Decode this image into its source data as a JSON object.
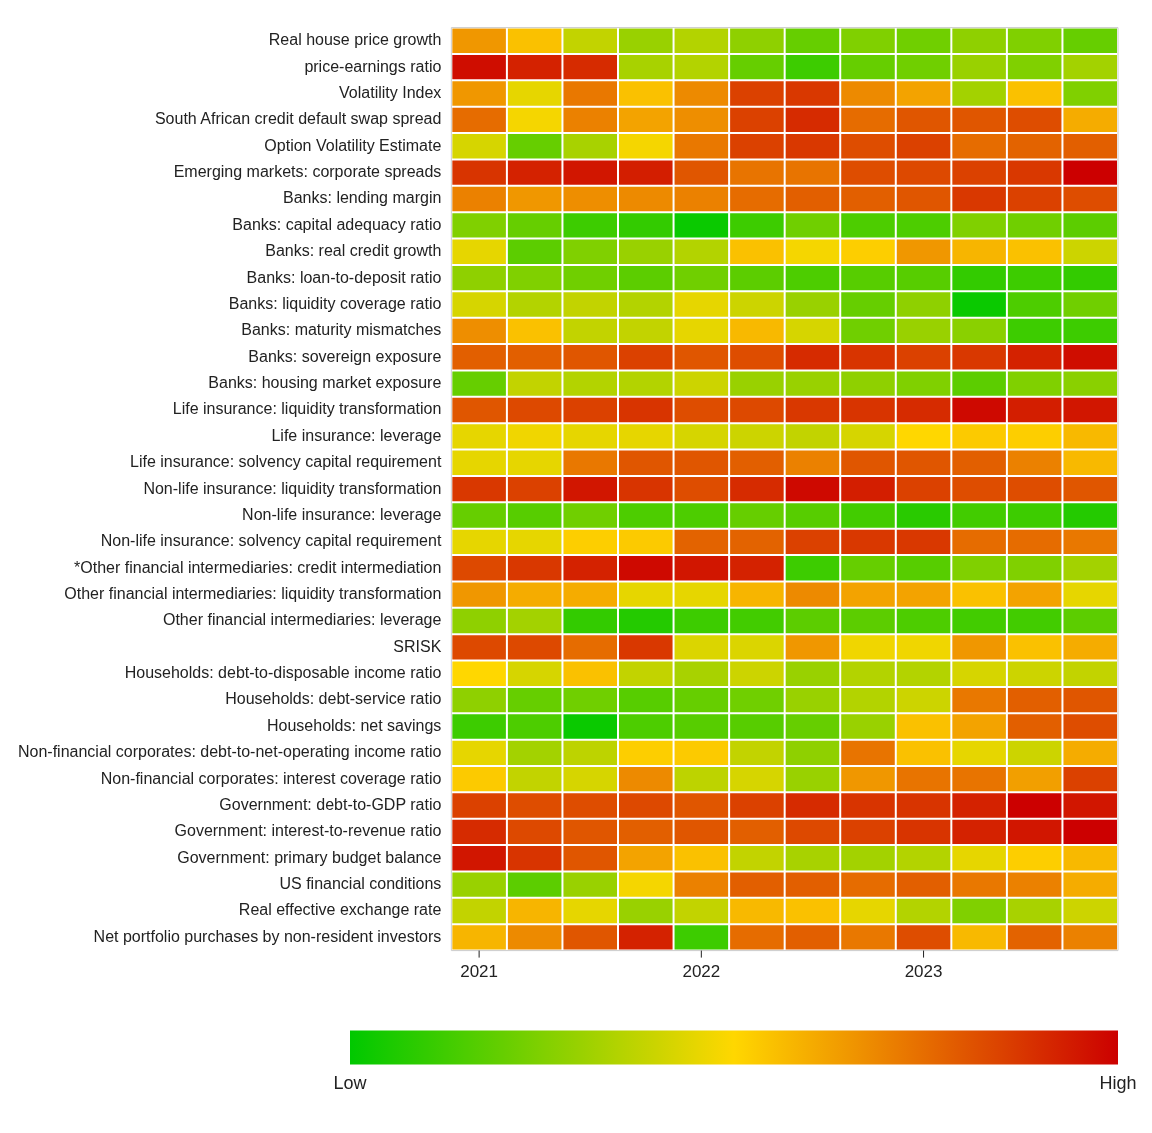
{
  "chart_data": {
    "type": "heatmap",
    "categories": [
      "2021",
      null,
      null,
      null,
      "2022",
      null,
      null,
      null,
      "2023",
      null,
      null,
      null
    ],
    "y_categories": [
      "Real house price growth",
      "price-earnings ratio",
      "Volatility Index",
      "South African credit default swap spread",
      "Option Volatility Estimate",
      "Emerging markets: corporate spreads",
      "Banks: lending margin",
      "Banks: capital adequacy ratio",
      "Banks: real credit growth",
      "Banks: loan-to-deposit ratio",
      "Banks: liquidity coverage ratio",
      "Banks: maturity mismatches",
      "Banks: sovereign exposure",
      "Banks: housing market exposure",
      "Life insurance: liquidity transformation",
      "Life insurance: leverage",
      "Life insurance: solvency capital requirement",
      "Non-life insurance: liquidity transformation",
      "Non-life insurance: leverage",
      "Non-life insurance: solvency capital requirement",
      "*Other financial intermediaries: credit intermediation",
      "Other financial intermediaries: liquidity transformation",
      "Other financial intermediaries: leverage",
      "SRISK",
      "Households: debt-to-disposable income ratio",
      "Households: debt-service ratio",
      "Households: net savings",
      "Non-financial corporates: debt-to-net-operating income ratio",
      "Non-financial corporates: interest coverage ratio",
      "Government: debt-to-GDP ratio",
      "Government: interest-to-revenue ratio",
      "Government: primary budget balance",
      "US financial conditions",
      "Real effective exchange rate",
      "Net portfolio purchases by non-resident investors"
    ],
    "cells": [
      [
        0.65,
        0.55,
        0.38,
        0.3,
        0.35,
        0.28,
        0.2,
        0.25,
        0.22,
        0.28,
        0.25,
        0.2
      ],
      [
        0.97,
        0.92,
        0.9,
        0.33,
        0.35,
        0.2,
        0.12,
        0.2,
        0.22,
        0.3,
        0.25,
        0.32
      ],
      [
        0.65,
        0.45,
        0.72,
        0.55,
        0.68,
        0.85,
        0.87,
        0.68,
        0.62,
        0.32,
        0.55,
        0.25
      ],
      [
        0.75,
        0.48,
        0.7,
        0.62,
        0.67,
        0.85,
        0.9,
        0.75,
        0.8,
        0.8,
        0.82,
        0.6
      ],
      [
        0.42,
        0.2,
        0.33,
        0.48,
        0.72,
        0.85,
        0.87,
        0.82,
        0.85,
        0.75,
        0.77,
        0.78
      ],
      [
        0.88,
        0.92,
        0.95,
        0.93,
        0.8,
        0.73,
        0.73,
        0.82,
        0.83,
        0.85,
        0.87,
        1.0
      ],
      [
        0.7,
        0.65,
        0.67,
        0.68,
        0.7,
        0.75,
        0.78,
        0.78,
        0.8,
        0.87,
        0.85,
        0.82
      ],
      [
        0.25,
        0.2,
        0.12,
        0.1,
        0.02,
        0.12,
        0.22,
        0.15,
        0.15,
        0.25,
        0.22,
        0.18
      ],
      [
        0.45,
        0.18,
        0.25,
        0.3,
        0.35,
        0.55,
        0.48,
        0.52,
        0.65,
        0.58,
        0.55,
        0.4
      ],
      [
        0.28,
        0.25,
        0.22,
        0.18,
        0.22,
        0.18,
        0.15,
        0.17,
        0.17,
        0.1,
        0.12,
        0.1
      ],
      [
        0.42,
        0.35,
        0.38,
        0.35,
        0.45,
        0.4,
        0.3,
        0.2,
        0.28,
        0.02,
        0.15,
        0.22
      ],
      [
        0.67,
        0.55,
        0.38,
        0.38,
        0.45,
        0.57,
        0.42,
        0.22,
        0.3,
        0.27,
        0.12,
        0.12
      ],
      [
        0.78,
        0.78,
        0.8,
        0.85,
        0.8,
        0.82,
        0.9,
        0.88,
        0.85,
        0.87,
        0.92,
        0.97
      ],
      [
        0.2,
        0.38,
        0.35,
        0.35,
        0.4,
        0.3,
        0.3,
        0.28,
        0.25,
        0.18,
        0.25,
        0.27
      ],
      [
        0.8,
        0.83,
        0.85,
        0.88,
        0.82,
        0.83,
        0.87,
        0.88,
        0.9,
        0.98,
        0.93,
        0.95
      ],
      [
        0.45,
        0.47,
        0.45,
        0.45,
        0.42,
        0.4,
        0.38,
        0.42,
        0.5,
        0.53,
        0.52,
        0.57
      ],
      [
        0.45,
        0.45,
        0.72,
        0.8,
        0.8,
        0.78,
        0.7,
        0.8,
        0.8,
        0.78,
        0.7,
        0.57
      ],
      [
        0.87,
        0.85,
        0.95,
        0.88,
        0.82,
        0.9,
        0.98,
        0.93,
        0.85,
        0.82,
        0.82,
        0.8
      ],
      [
        0.2,
        0.17,
        0.22,
        0.15,
        0.15,
        0.2,
        0.17,
        0.13,
        0.08,
        0.13,
        0.12,
        0.07
      ],
      [
        0.45,
        0.45,
        0.52,
        0.53,
        0.77,
        0.77,
        0.85,
        0.87,
        0.87,
        0.75,
        0.75,
        0.72
      ],
      [
        0.83,
        0.87,
        0.92,
        0.98,
        0.95,
        0.92,
        0.12,
        0.2,
        0.17,
        0.25,
        0.25,
        0.32
      ],
      [
        0.65,
        0.6,
        0.6,
        0.45,
        0.45,
        0.58,
        0.68,
        0.62,
        0.62,
        0.55,
        0.62,
        0.45
      ],
      [
        0.28,
        0.32,
        0.1,
        0.07,
        0.12,
        0.13,
        0.18,
        0.18,
        0.15,
        0.13,
        0.13,
        0.18
      ],
      [
        0.83,
        0.83,
        0.75,
        0.87,
        0.43,
        0.43,
        0.65,
        0.47,
        0.47,
        0.65,
        0.55,
        0.6
      ],
      [
        0.5,
        0.42,
        0.55,
        0.38,
        0.33,
        0.4,
        0.3,
        0.35,
        0.35,
        0.42,
        0.4,
        0.38
      ],
      [
        0.28,
        0.2,
        0.22,
        0.17,
        0.2,
        0.22,
        0.3,
        0.35,
        0.4,
        0.72,
        0.78,
        0.8
      ],
      [
        0.12,
        0.15,
        0.02,
        0.15,
        0.17,
        0.17,
        0.2,
        0.3,
        0.55,
        0.62,
        0.78,
        0.82
      ],
      [
        0.45,
        0.32,
        0.37,
        0.52,
        0.53,
        0.38,
        0.28,
        0.73,
        0.55,
        0.45,
        0.4,
        0.6
      ],
      [
        0.53,
        0.38,
        0.42,
        0.68,
        0.37,
        0.42,
        0.3,
        0.65,
        0.73,
        0.73,
        0.63,
        0.85
      ],
      [
        0.85,
        0.82,
        0.82,
        0.83,
        0.8,
        0.85,
        0.9,
        0.88,
        0.88,
        0.92,
        1.0,
        0.95
      ],
      [
        0.9,
        0.83,
        0.8,
        0.78,
        0.8,
        0.78,
        0.83,
        0.85,
        0.88,
        0.92,
        0.95,
        1.0
      ],
      [
        0.95,
        0.88,
        0.8,
        0.62,
        0.55,
        0.38,
        0.33,
        0.32,
        0.35,
        0.45,
        0.52,
        0.57
      ],
      [
        0.3,
        0.18,
        0.3,
        0.48,
        0.7,
        0.78,
        0.78,
        0.75,
        0.78,
        0.72,
        0.7,
        0.6
      ],
      [
        0.38,
        0.58,
        0.45,
        0.3,
        0.38,
        0.57,
        0.55,
        0.45,
        0.35,
        0.25,
        0.33,
        0.4
      ],
      [
        0.58,
        0.68,
        0.8,
        0.92,
        0.12,
        0.75,
        0.78,
        0.72,
        0.82,
        0.57,
        0.77,
        0.7
      ]
    ],
    "clim": [
      0,
      1
    ],
    "cticks": [
      {
        "value": 0,
        "label": "Low"
      },
      {
        "value": 1,
        "label": "High"
      }
    ]
  }
}
